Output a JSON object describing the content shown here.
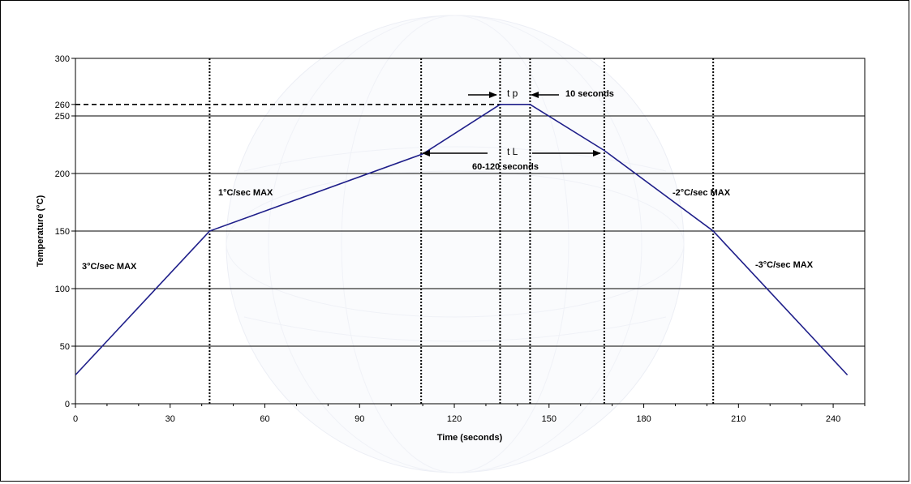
{
  "chart_data": {
    "type": "line",
    "title": "",
    "xlabel": "Time (seconds)",
    "ylabel": "Temperature (°C)",
    "xlim": [
      0,
      250
    ],
    "ylim": [
      0,
      300
    ],
    "x_ticks": [
      0,
      30,
      60,
      90,
      120,
      150,
      180,
      210,
      240
    ],
    "y_ticks": [
      0,
      50,
      100,
      150,
      200,
      250,
      300
    ],
    "extra_y_tick": 260,
    "grid": "horizontal",
    "series": [
      {
        "color": "#1f1f8a",
        "points": [
          [
            0,
            25
          ],
          [
            42.5,
            150
          ],
          [
            110,
            217
          ],
          [
            134.5,
            260
          ],
          [
            144,
            260
          ],
          [
            167.5,
            220
          ],
          [
            202,
            150
          ],
          [
            244.5,
            25
          ]
        ]
      }
    ],
    "vertical_dotted_lines_x": [
      42.5,
      109.5,
      134.5,
      144,
      167.5,
      202
    ],
    "reference_line": {
      "y": 260,
      "x_end": 134.5,
      "style": "dashed"
    },
    "annotations": {
      "ramp1": "3°C/sec MAX",
      "ramp2": "1°C/sec MAX",
      "ramp3": "-2°C/sec MAX",
      "ramp4": "-3°C/sec MAX",
      "tp": "t p",
      "tp_duration": "10 seconds",
      "tl": "t L",
      "tl_duration": "60-120 seconds"
    }
  }
}
